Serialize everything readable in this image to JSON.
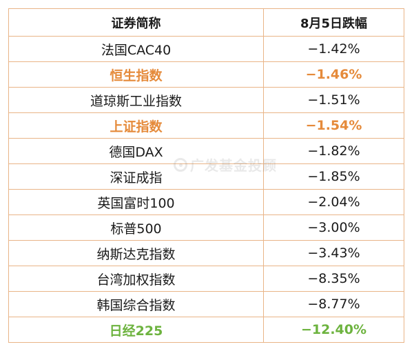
{
  "table": {
    "headers": [
      "证券简称",
      "8月5日跌幅"
    ],
    "rows": [
      {
        "name": "法国CAC40",
        "change": "−1.42%",
        "highlight": "none"
      },
      {
        "name": "恒生指数",
        "change": "−1.46%",
        "highlight": "orange"
      },
      {
        "name": "道琼斯工业指数",
        "change": "−1.51%",
        "highlight": "none"
      },
      {
        "name": "上证指数",
        "change": "−1.54%",
        "highlight": "orange"
      },
      {
        "name": "德国DAX",
        "change": "−1.82%",
        "highlight": "none"
      },
      {
        "name": "深证成指",
        "change": "−1.85%",
        "highlight": "none"
      },
      {
        "name": "英国富时100",
        "change": "−2.04%",
        "highlight": "none"
      },
      {
        "name": "标普500",
        "change": "−3.00%",
        "highlight": "none"
      },
      {
        "name": "纳斯达克指数",
        "change": "−3.43%",
        "highlight": "none"
      },
      {
        "name": "台湾加权指数",
        "change": "−8.35%",
        "highlight": "none"
      },
      {
        "name": "韩国综合指数",
        "change": "−8.77%",
        "highlight": "none"
      },
      {
        "name": "日经225",
        "change": "−12.40%",
        "highlight": "green"
      }
    ]
  },
  "watermark": {
    "text": "广发基金投顾",
    "icon": "gf-logo-icon"
  },
  "colors": {
    "border": "#e9b487",
    "highlight_orange": "#e58a3a",
    "highlight_green": "#6db33f",
    "text": "#1a1a1a"
  }
}
